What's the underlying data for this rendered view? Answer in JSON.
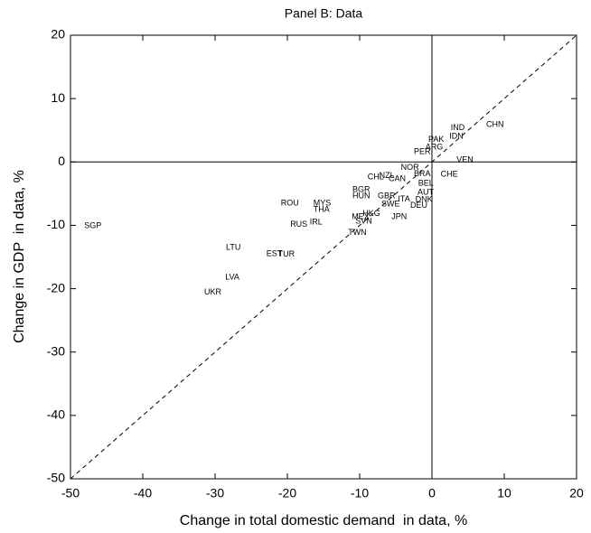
{
  "chart_data": {
    "type": "scatter",
    "title": "Panel B: Data",
    "x_label": "Change in total domestic demand  in data, %",
    "y_label": "Change in GDP  in data, %",
    "xlim": [
      -50,
      20
    ],
    "ylim": [
      -50,
      20
    ],
    "xticks": [
      -50,
      -40,
      -30,
      -20,
      -10,
      0,
      10,
      20
    ],
    "yticks": [
      -50,
      -40,
      -30,
      -20,
      -10,
      0,
      10,
      20
    ],
    "labels": [
      "SGP",
      "LTU",
      "EST",
      "TUR",
      "LVA",
      "UKR",
      "ROU",
      "MYS",
      "THA",
      "RUS",
      "IRL",
      "TWN",
      "MEX",
      "SVN",
      "HKG",
      "JPN",
      "BGR",
      "HUN",
      "GBR",
      "CHL",
      "NZL",
      "CAN",
      "SWE",
      "ITA",
      "DEU",
      "DNK",
      "AUT",
      "BEL",
      "NOR",
      "BRA",
      "CHE",
      "VEN",
      "ARG",
      "PER",
      "PAK",
      "IDN",
      "IND",
      "CHN"
    ],
    "x": [
      -48.1,
      -28.5,
      -22.9,
      -21.3,
      -28.6,
      -31.5,
      -20.9,
      -16.4,
      -16.4,
      -19.6,
      -16.9,
      -11.6,
      -11.1,
      -10.6,
      -9.6,
      -5.6,
      -11,
      -11,
      -7.5,
      -8.9,
      -7.3,
      -6,
      -7,
      -4.7,
      -3,
      -2.3,
      -2,
      -1.9,
      -4.3,
      -2.5,
      1.2,
      3.4,
      -0.9,
      -2.5,
      -0.5,
      2.4,
      2.6,
      7.5
    ],
    "y": [
      -10.1,
      -13.5,
      -14.5,
      -14.6,
      -18.2,
      -20.6,
      -6.5,
      -6.5,
      -7.5,
      -9.9,
      -9.5,
      -11.2,
      -8.7,
      -9.4,
      -8.2,
      -8.7,
      -4.4,
      -5.4,
      -5.4,
      -2.4,
      -2.2,
      -2.7,
      -6.7,
      -5.9,
      -6.9,
      -6,
      -4.8,
      -3.4,
      -0.9,
      -1.9,
      -2,
      0.3,
      2.3,
      1.6,
      3.5,
      4,
      5.4,
      5.9
    ],
    "color": "#000000",
    "diagonal": true,
    "zero_lines": true
  }
}
